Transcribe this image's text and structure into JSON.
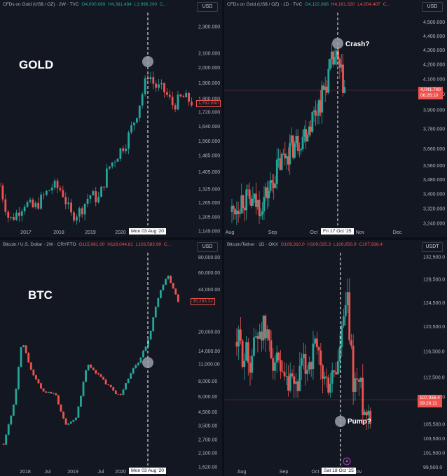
{
  "panels": [
    {
      "id": "gold-2w",
      "title_name": "CFDs on Gold (US$ / OZ) · 2W · TVC",
      "title_o": "O4,000.069",
      "title_h": "H4,381.484",
      "title_l": "L3,996.290",
      "title_c": "C...",
      "currency": "USD",
      "big_label": "GOLD",
      "date_marker": "Mon 03 Aug '20",
      "price_label": "1,782.830",
      "price_label2": ""
    },
    {
      "id": "gold-1d",
      "title_name": "CFDs on Gold (US$ / OZ) · 1D · TVC",
      "title_o": "O4,122.868",
      "title_h": "H4,161.320",
      "title_l": "L4,004.407",
      "title_c": "C...",
      "currency": "USD",
      "big_label": "",
      "date_marker": "Fri 17 Oct '25",
      "price_label": "4,041.740",
      "price_label2": "06:26:10",
      "annotation": "Crash?"
    },
    {
      "id": "btc-2w",
      "title_name": "Bitcoin / U.S. Dollar · 2W · CRYPTO",
      "title_o": "O115,081.00",
      "title_h": "H116,044.81",
      "title_l": "L103,583.99",
      "title_c": "C...",
      "currency": "USD",
      "big_label": "BTC",
      "date_marker": "Mon 03 Aug '20",
      "price_label": "35,293.32",
      "price_label2": ""
    },
    {
      "id": "btc-1d",
      "title_name": "Bitcoin/Tether · 1D · OKX",
      "title_o": "O108,310.0",
      "title_h": "H109,025.3",
      "title_l": "L106,650.9",
      "title_c": "C107,936.4",
      "currency": "USDT",
      "big_label": "",
      "date_marker": "Sat 18 Oct '25",
      "price_label": "107,936.4",
      "price_label2": "09:26:11",
      "annotation": "Pump?"
    }
  ],
  "chart_data": [
    {
      "type": "candlestick",
      "title": "CFDs on Gold (US$ / OZ) · 2W · TVC",
      "x_ticks": [
        "2017",
        "2018",
        "2019",
        "2020"
      ],
      "y_ticks": [
        "2,300.000",
        "2,100.000",
        "2,000.000",
        "1,900.000",
        "1,800.000",
        "1,720.000",
        "1,640.000",
        "1,560.000",
        "1,485.000",
        "1,405.000",
        "1,325.000",
        "1,265.000",
        "1,205.000",
        "1,149.000"
      ],
      "y_scale": "log",
      "ylim": [
        1149,
        2400
      ],
      "series": [
        {
          "x": [
            "2016-08",
            "2016-11",
            "2017-01",
            "2017-04",
            "2017-07",
            "2017-10",
            "2018-01",
            "2018-04",
            "2018-07",
            "2018-10",
            "2019-01",
            "2019-04",
            "2019-07",
            "2019-10",
            "2020-01",
            "2020-04",
            "2020-08",
            "2020-10",
            "2021-01",
            "2021-04",
            "2021-07",
            "2021-10"
          ],
          "close": [
            1340,
            1190,
            1215,
            1265,
            1240,
            1290,
            1340,
            1320,
            1210,
            1230,
            1300,
            1280,
            1420,
            1490,
            1560,
            1700,
            1970,
            1880,
            1850,
            1760,
            1810,
            1782
          ]
        }
      ],
      "annotations": [
        "Mon 03 Aug '20"
      ]
    },
    {
      "type": "candlestick",
      "title": "CFDs on Gold (US$ / OZ) · 1D · TVC",
      "x_ticks": [
        "Aug",
        "Sep",
        "Oct",
        "Nov",
        "Dec"
      ],
      "y_ticks": [
        "4,500.000",
        "4,400.000",
        "4,300.000",
        "4,200.000",
        "4,100.000",
        "4,000.000",
        "3,900.000",
        "3,780.000",
        "3,660.000",
        "3,560.000",
        "3,480.000",
        "3,400.000",
        "3,320.000",
        "3,240.000"
      ],
      "y_scale": "log",
      "ylim": [
        3200,
        4560
      ],
      "series": [
        {
          "x": [
            "2025-07-28",
            "2025-08-05",
            "2025-08-12",
            "2025-08-19",
            "2025-08-26",
            "2025-09-02",
            "2025-09-09",
            "2025-09-16",
            "2025-09-23",
            "2025-09-30",
            "2025-10-07",
            "2025-10-14",
            "2025-10-17",
            "2025-10-21",
            "2025-10-24"
          ],
          "close": [
            3300,
            3380,
            3350,
            3340,
            3420,
            3550,
            3640,
            3690,
            3760,
            3870,
            4000,
            4200,
            4250,
            4120,
            4041
          ]
        }
      ],
      "annotations": [
        "Crash?",
        "Fri 17 Oct '25"
      ]
    },
    {
      "type": "candlestick",
      "title": "Bitcoin / U.S. Dollar · 2W · CRYPTO",
      "x_ticks": [
        "2018",
        "Jul",
        "2019",
        "Jul",
        "2020"
      ],
      "y_ticks": [
        "80,000.00",
        "60,000.00",
        "44,000.00",
        "20,000.00",
        "14,000.00",
        "11,000.00",
        "8,000.00",
        "6,000.00",
        "4,500.00",
        "3,500.00",
        "2,700.00",
        "2,100.00",
        "1,620.00"
      ],
      "y_scale": "log",
      "ylim": [
        1500,
        85000
      ],
      "series": [
        {
          "x": [
            "2017-07",
            "2017-10",
            "2017-12",
            "2018-03",
            "2018-06",
            "2018-09",
            "2018-12",
            "2019-03",
            "2019-06",
            "2019-09",
            "2019-12",
            "2020-03",
            "2020-06",
            "2020-08",
            "2020-11",
            "2021-01",
            "2021-04",
            "2021-07"
          ],
          "close": [
            2500,
            5500,
            17000,
            9000,
            6500,
            6500,
            3600,
            4000,
            11000,
            9000,
            7200,
            6000,
            9500,
            11200,
            18000,
            35000,
            58000,
            35293
          ]
        }
      ],
      "annotations": [
        "Mon 03 Aug '20"
      ]
    },
    {
      "type": "candlestick",
      "title": "Bitcoin/Tether · 1D · OKX",
      "x_ticks": [
        "Aug",
        "Sep",
        "Oct",
        "Nov"
      ],
      "y_ticks": [
        "132,500.0",
        "128,500.0",
        "124,500.0",
        "120,500.0",
        "116,500.0",
        "112,500.0",
        "109,500.0",
        "105,500.0",
        "103,500.0",
        "101,500.0",
        "99,500.0"
      ],
      "y_scale": "log",
      "ylim": [
        99000,
        133000
      ],
      "series": [
        {
          "x": [
            "2025-07-28",
            "2025-08-05",
            "2025-08-12",
            "2025-08-19",
            "2025-08-26",
            "2025-09-02",
            "2025-09-09",
            "2025-09-16",
            "2025-09-23",
            "2025-09-30",
            "2025-10-06",
            "2025-10-10",
            "2025-10-14",
            "2025-10-18",
            "2025-10-21"
          ],
          "close": [
            118000,
            115000,
            121000,
            117000,
            111000,
            110500,
            114000,
            116500,
            111000,
            114000,
            125000,
            112000,
            111500,
            107000,
            107936
          ]
        }
      ],
      "annotations": [
        "Pump?",
        "Sat 18 Oct '25"
      ]
    }
  ]
}
